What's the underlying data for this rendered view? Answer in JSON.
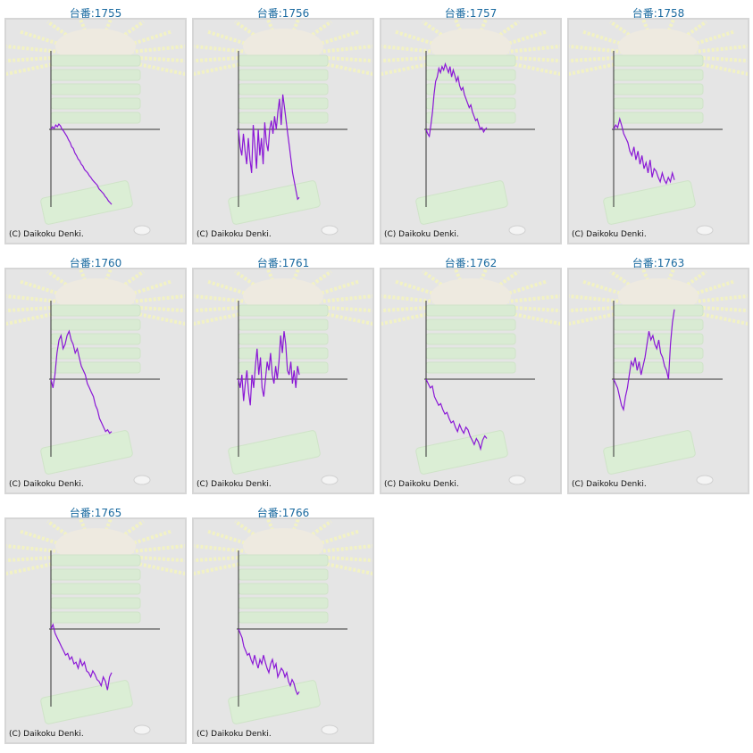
{
  "machines": [
    {
      "title": "台番:1755",
      "copyright": "(C) Daikoku Denki.",
      "series": [
        0,
        3,
        1,
        5,
        3,
        6,
        4,
        0,
        -2,
        -5,
        -8,
        -12,
        -15,
        -20,
        -22,
        -27,
        -30,
        -34,
        -36,
        -40,
        -42,
        -46,
        -48,
        -50,
        -53,
        -55,
        -58,
        -60,
        -62,
        -64,
        -68,
        -70,
        -72,
        -74,
        -77,
        -79,
        -82,
        -84,
        -86
      ]
    },
    {
      "title": "台番:1756",
      "copyright": "(C) Daikoku Denki.",
      "series": [
        0,
        -20,
        -30,
        -5,
        -25,
        -40,
        -10,
        -35,
        -50,
        5,
        -20,
        -45,
        0,
        -30,
        -10,
        -40,
        8,
        -15,
        -25,
        0,
        10,
        -5,
        15,
        0,
        20,
        35,
        5,
        40,
        25,
        10,
        -5,
        -20,
        -35,
        -50,
        -60,
        -70,
        -80,
        -78
      ]
    },
    {
      "title": "台番:1757",
      "copyright": "(C) Daikoku Denki.",
      "series": [
        0,
        -5,
        -8,
        5,
        20,
        40,
        55,
        60,
        70,
        65,
        72,
        68,
        75,
        70,
        65,
        72,
        60,
        68,
        62,
        55,
        60,
        50,
        45,
        48,
        40,
        35,
        30,
        25,
        28,
        20,
        15,
        10,
        12,
        5,
        0,
        2,
        -3,
        0,
        2
      ]
    },
    {
      "title": "台番:1758",
      "copyright": "(C) Daikoku Denki.",
      "series": [
        0,
        5,
        2,
        12,
        4,
        -5,
        -10,
        -15,
        -25,
        -30,
        -20,
        -35,
        -25,
        -40,
        -30,
        -45,
        -38,
        -50,
        -35,
        -55,
        -45,
        -48,
        -55,
        -60,
        -50,
        -58,
        -62,
        -55,
        -60,
        -50,
        -58
      ]
    },
    {
      "title": "台番:1760",
      "copyright": "(C) Daikoku Denki.",
      "series": [
        0,
        -10,
        5,
        30,
        45,
        50,
        35,
        40,
        50,
        55,
        45,
        40,
        30,
        35,
        25,
        15,
        10,
        5,
        -5,
        -10,
        -15,
        -20,
        -30,
        -35,
        -45,
        -50,
        -55,
        -60,
        -58,
        -62,
        -60
      ]
    },
    {
      "title": "台番:1761",
      "copyright": "(C) Daikoku Denki.",
      "series": [
        0,
        -10,
        5,
        -25,
        -5,
        10,
        -15,
        -30,
        5,
        -10,
        15,
        35,
        5,
        25,
        -10,
        -20,
        0,
        20,
        10,
        30,
        5,
        -5,
        15,
        0,
        20,
        50,
        30,
        55,
        40,
        10,
        5,
        20,
        -5,
        10,
        -10,
        15,
        5
      ]
    },
    {
      "title": "台番:1762",
      "copyright": "(C) Daikoku Denki.",
      "series": [
        0,
        -5,
        -10,
        -8,
        -20,
        -25,
        -30,
        -28,
        -35,
        -40,
        -38,
        -45,
        -50,
        -48,
        -55,
        -60,
        -52,
        -58,
        -62,
        -55,
        -58,
        -65,
        -70,
        -75,
        -68,
        -72,
        -80,
        -70,
        -65,
        -68
      ]
    },
    {
      "title": "台番:1763",
      "copyright": "(C) Daikoku Denki.",
      "series": [
        0,
        -5,
        -10,
        -20,
        -30,
        -35,
        -20,
        -10,
        5,
        20,
        15,
        25,
        10,
        20,
        5,
        15,
        25,
        40,
        55,
        45,
        50,
        40,
        35,
        45,
        30,
        25,
        15,
        10,
        0,
        40,
        65,
        80
      ]
    },
    {
      "title": "台番:1765",
      "copyright": "(C) Daikoku Denki.",
      "series": [
        0,
        5,
        -5,
        -10,
        -15,
        -20,
        -25,
        -30,
        -28,
        -35,
        -32,
        -40,
        -38,
        -45,
        -35,
        -42,
        -38,
        -48,
        -50,
        -55,
        -48,
        -52,
        -58,
        -60,
        -65,
        -55,
        -60,
        -70,
        -55,
        -50
      ]
    },
    {
      "title": "台番:1766",
      "copyright": "(C) Daikoku Denki.",
      "series": [
        0,
        -5,
        -10,
        -20,
        -25,
        -30,
        -28,
        -35,
        -40,
        -30,
        -38,
        -45,
        -35,
        -40,
        -30,
        -38,
        -45,
        -50,
        -40,
        -35,
        -45,
        -40,
        -55,
        -50,
        -45,
        -48,
        -55,
        -50,
        -60,
        -65,
        -58,
        -62,
        -70,
        -75,
        -72
      ]
    }
  ]
}
